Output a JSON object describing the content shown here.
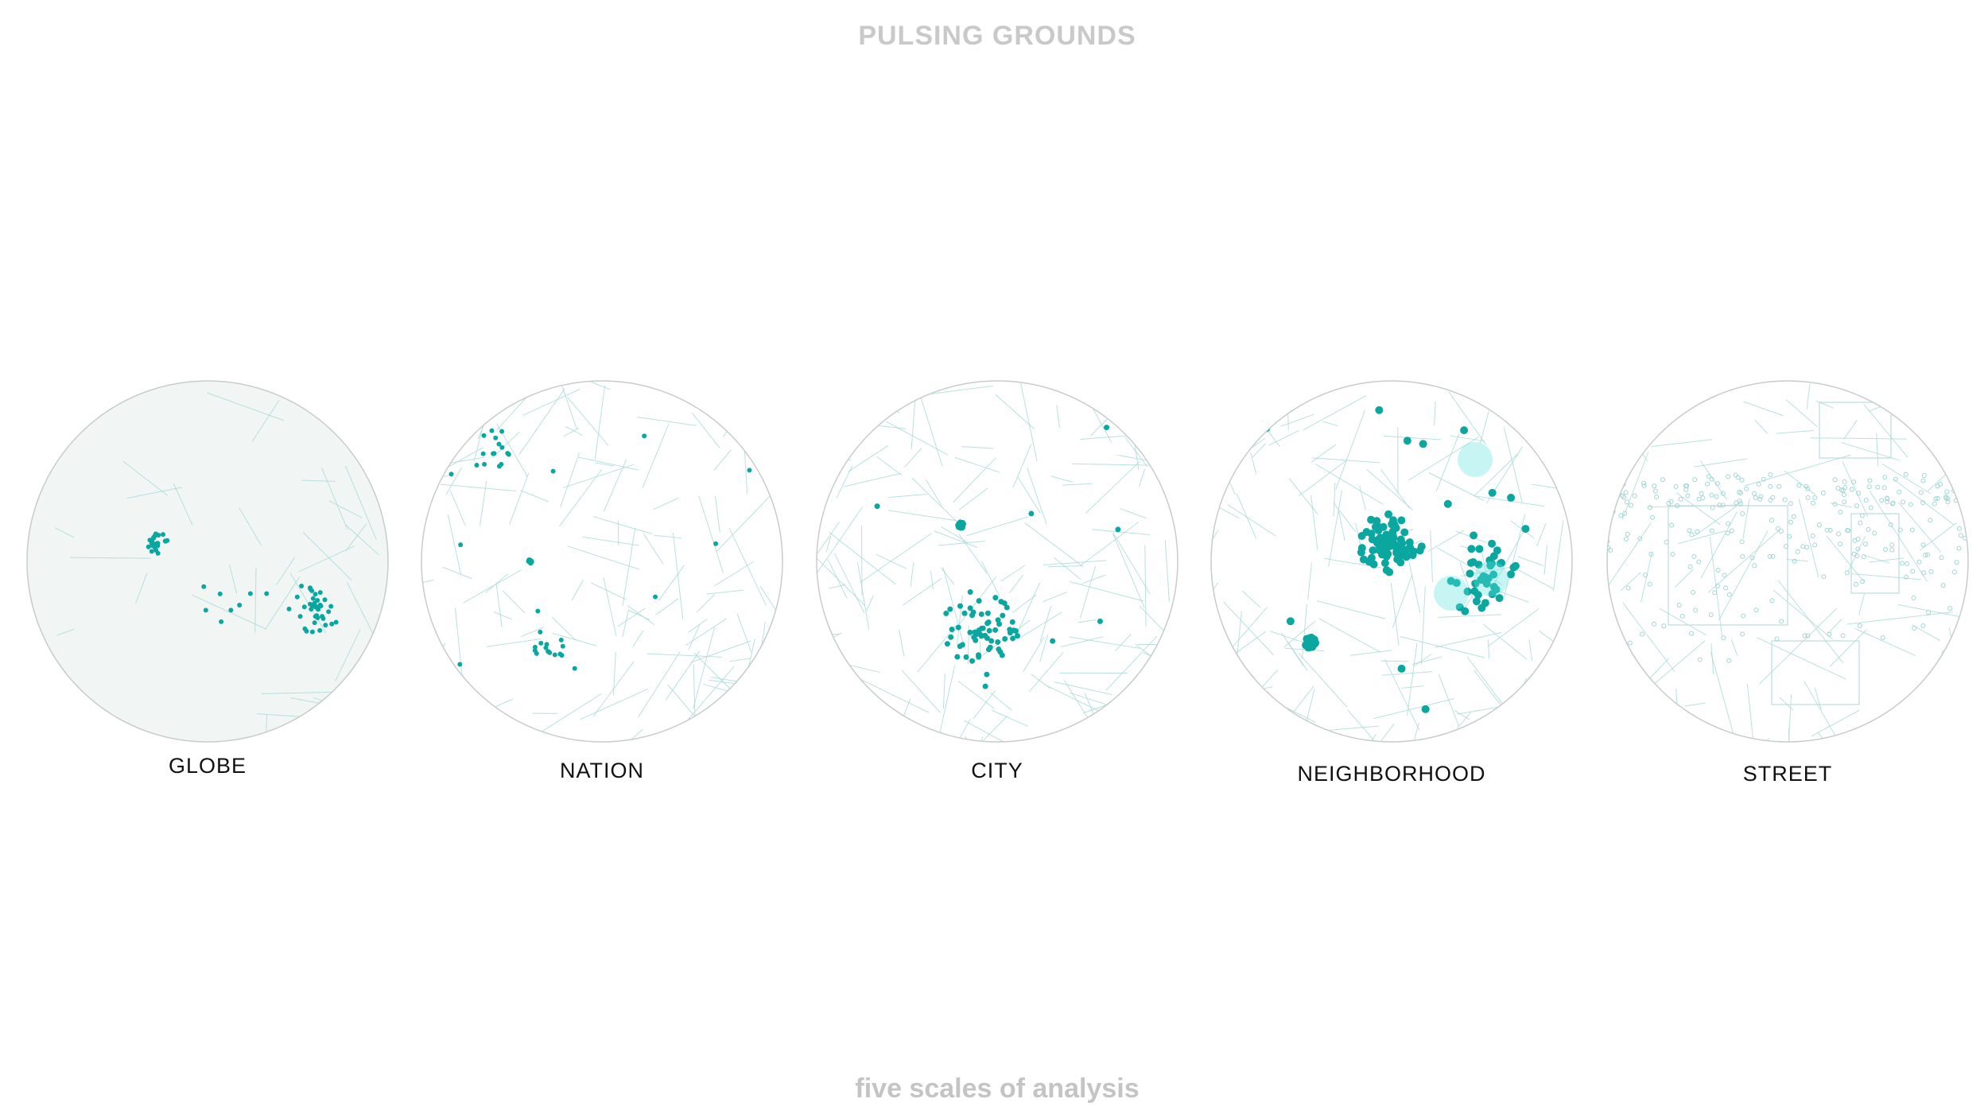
{
  "header": {
    "title": "PULSING GROUNDS"
  },
  "scales": [
    {
      "label": "GLOBE"
    },
    {
      "label": "NATION"
    },
    {
      "label": "CITY"
    },
    {
      "label": "NEIGHBORHOOD"
    },
    {
      "label": "STREET"
    }
  ],
  "footer": {
    "caption": "five scales of analysis"
  }
}
